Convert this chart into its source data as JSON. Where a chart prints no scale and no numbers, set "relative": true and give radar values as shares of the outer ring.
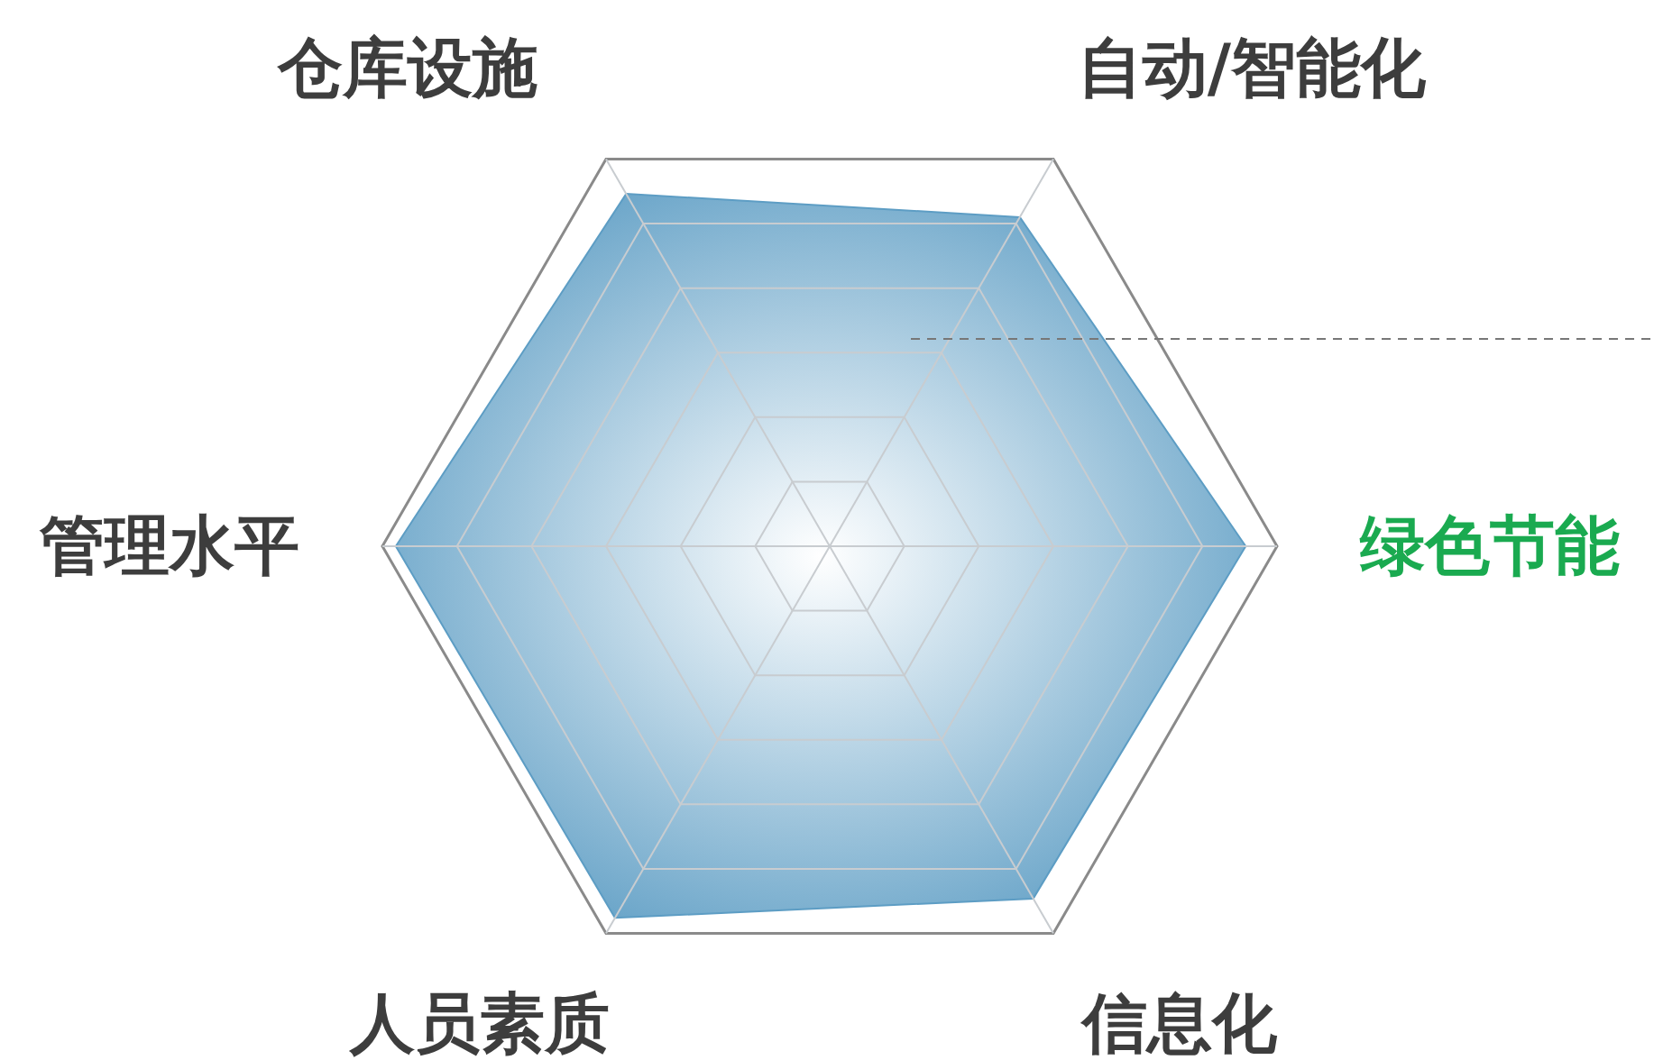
{
  "chart_data": {
    "type": "radar",
    "relative": true,
    "categories": [
      "自动/智能化",
      "绿色节能",
      "信息化",
      "人员素质",
      "管理水平",
      "仓库设施"
    ],
    "colors": [
      "#3d3d3d",
      "#1aaa50",
      "#3d3d3d",
      "#3d3d3d",
      "#3d3d3d",
      "#3d3d3d"
    ],
    "series": [
      {
        "color": "#5d9dc4",
        "values": [
          0.85,
          0.93,
          0.91,
          0.96,
          0.97,
          0.91
        ]
      }
    ]
  }
}
